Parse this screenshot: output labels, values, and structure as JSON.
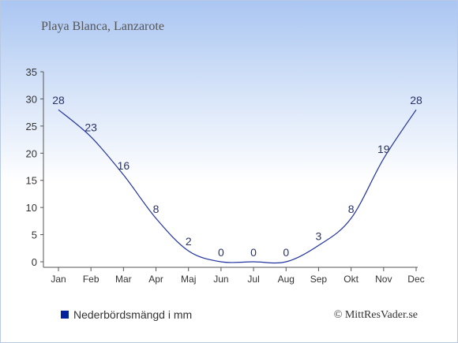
{
  "chart_data": {
    "type": "line",
    "title": "Playa Blanca, Lanzarote",
    "categories": [
      "Jan",
      "Feb",
      "Mar",
      "Apr",
      "Maj",
      "Jun",
      "Jul",
      "Aug",
      "Sep",
      "Okt",
      "Nov",
      "Dec"
    ],
    "series": [
      {
        "name": "Nederbördsmängd i mm",
        "values": [
          28,
          23,
          16,
          8,
          2,
          0,
          0,
          0,
          3,
          8,
          19,
          28
        ],
        "color": "#2233a0"
      }
    ],
    "ylim": [
      0,
      35
    ],
    "yticks": [
      "0",
      "5",
      "10",
      "15",
      "20",
      "25",
      "30",
      "35"
    ],
    "grid": false,
    "legend_position": "bottom-left"
  },
  "copyright": "© MittResVader.se",
  "colors": {
    "line": "#2233a0",
    "text": "#333333",
    "title": "#555555",
    "legend_marker": "#00229a"
  }
}
